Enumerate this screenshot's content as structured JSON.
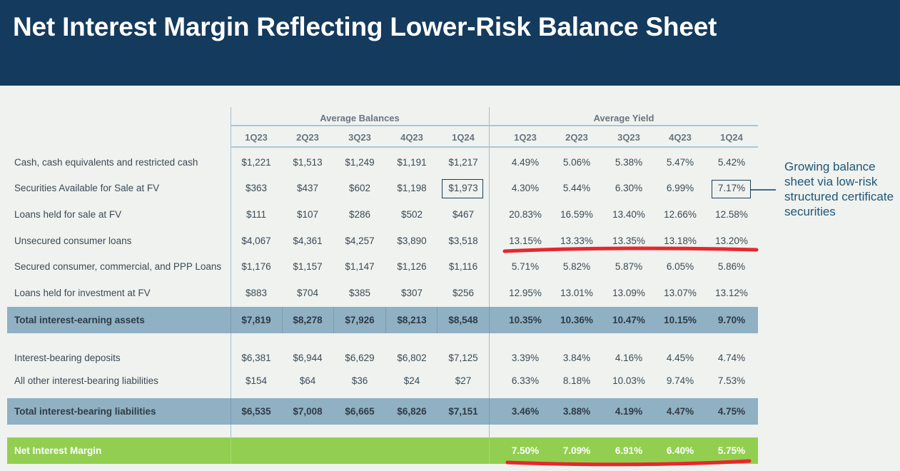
{
  "title": "Net Interest Margin Reflecting Lower-Risk Balance Sheet",
  "groups": {
    "balances": "Average Balances",
    "yield": "Average Yield"
  },
  "quarters": [
    "1Q23",
    "2Q23",
    "3Q23",
    "4Q23",
    "1Q24"
  ],
  "rows": [
    {
      "label": "Cash, cash equivalents and restricted cash",
      "balances": [
        "$1,221",
        "$1,513",
        "$1,249",
        "$1,191",
        "$1,217"
      ],
      "yields": [
        "4.49%",
        "5.06%",
        "5.38%",
        "5.47%",
        "5.42%"
      ]
    },
    {
      "label": "Securities Available for Sale at FV",
      "balances": [
        "$363",
        "$437",
        "$602",
        "$1,198",
        "$1,973"
      ],
      "yields": [
        "4.30%",
        "5.44%",
        "6.30%",
        "6.99%",
        "7.17%"
      ]
    },
    {
      "label": "Loans held for sale at FV",
      "balances": [
        "$111",
        "$107",
        "$286",
        "$502",
        "$467"
      ],
      "yields": [
        "20.83%",
        "16.59%",
        "13.40%",
        "12.66%",
        "12.58%"
      ]
    },
    {
      "label": "Unsecured consumer loans",
      "balances": [
        "$4,067",
        "$4,361",
        "$4,257",
        "$3,890",
        "$3,518"
      ],
      "yields": [
        "13.15%",
        "13.33%",
        "13.35%",
        "13.18%",
        "13.20%"
      ]
    },
    {
      "label": "Secured consumer, commercial, and PPP Loans",
      "balances": [
        "$1,176",
        "$1,157",
        "$1,147",
        "$1,126",
        "$1,116"
      ],
      "yields": [
        "5.71%",
        "5.82%",
        "5.87%",
        "6.05%",
        "5.86%"
      ]
    },
    {
      "label": "Loans held for investment at FV",
      "balances": [
        "$883",
        "$704",
        "$385",
        "$307",
        "$256"
      ],
      "yields": [
        "12.95%",
        "13.01%",
        "13.09%",
        "13.07%",
        "13.12%"
      ]
    }
  ],
  "total_assets": {
    "label": "Total interest-earning assets",
    "balances": [
      "$7,819",
      "$8,278",
      "$7,926",
      "$8,213",
      "$8,548"
    ],
    "yields": [
      "10.35%",
      "10.36%",
      "10.47%",
      "10.15%",
      "9.70%"
    ]
  },
  "liability_rows": [
    {
      "label": "Interest-bearing deposits",
      "balances": [
        "$6,381",
        "$6,944",
        "$6,629",
        "$6,802",
        "$7,125"
      ],
      "yields": [
        "3.39%",
        "3.84%",
        "4.16%",
        "4.45%",
        "4.74%"
      ]
    },
    {
      "label": "All other interest-bearing liabilities",
      "balances": [
        "$154",
        "$64",
        "$36",
        "$24",
        "$27"
      ],
      "yields": [
        "6.33%",
        "8.18%",
        "10.03%",
        "9.74%",
        "7.53%"
      ]
    }
  ],
  "total_liabilities": {
    "label": "Total interest-bearing liabilities",
    "balances": [
      "$6,535",
      "$7,008",
      "$6,665",
      "$6,826",
      "$7,151"
    ],
    "yields": [
      "3.46%",
      "3.88%",
      "4.19%",
      "4.47%",
      "4.75%"
    ]
  },
  "nim": {
    "label": "Net Interest Margin",
    "yields": [
      "7.50%",
      "7.09%",
      "6.91%",
      "6.40%",
      "5.75%"
    ]
  },
  "callout": "Growing balance sheet via low-risk structured certificate securities",
  "colors": {
    "header_bg": "#143a5e",
    "band_blue": "#90b0c4",
    "band_green": "#92cf51",
    "highlight_red": "#e8262d",
    "callout_text": "#1f5577"
  }
}
